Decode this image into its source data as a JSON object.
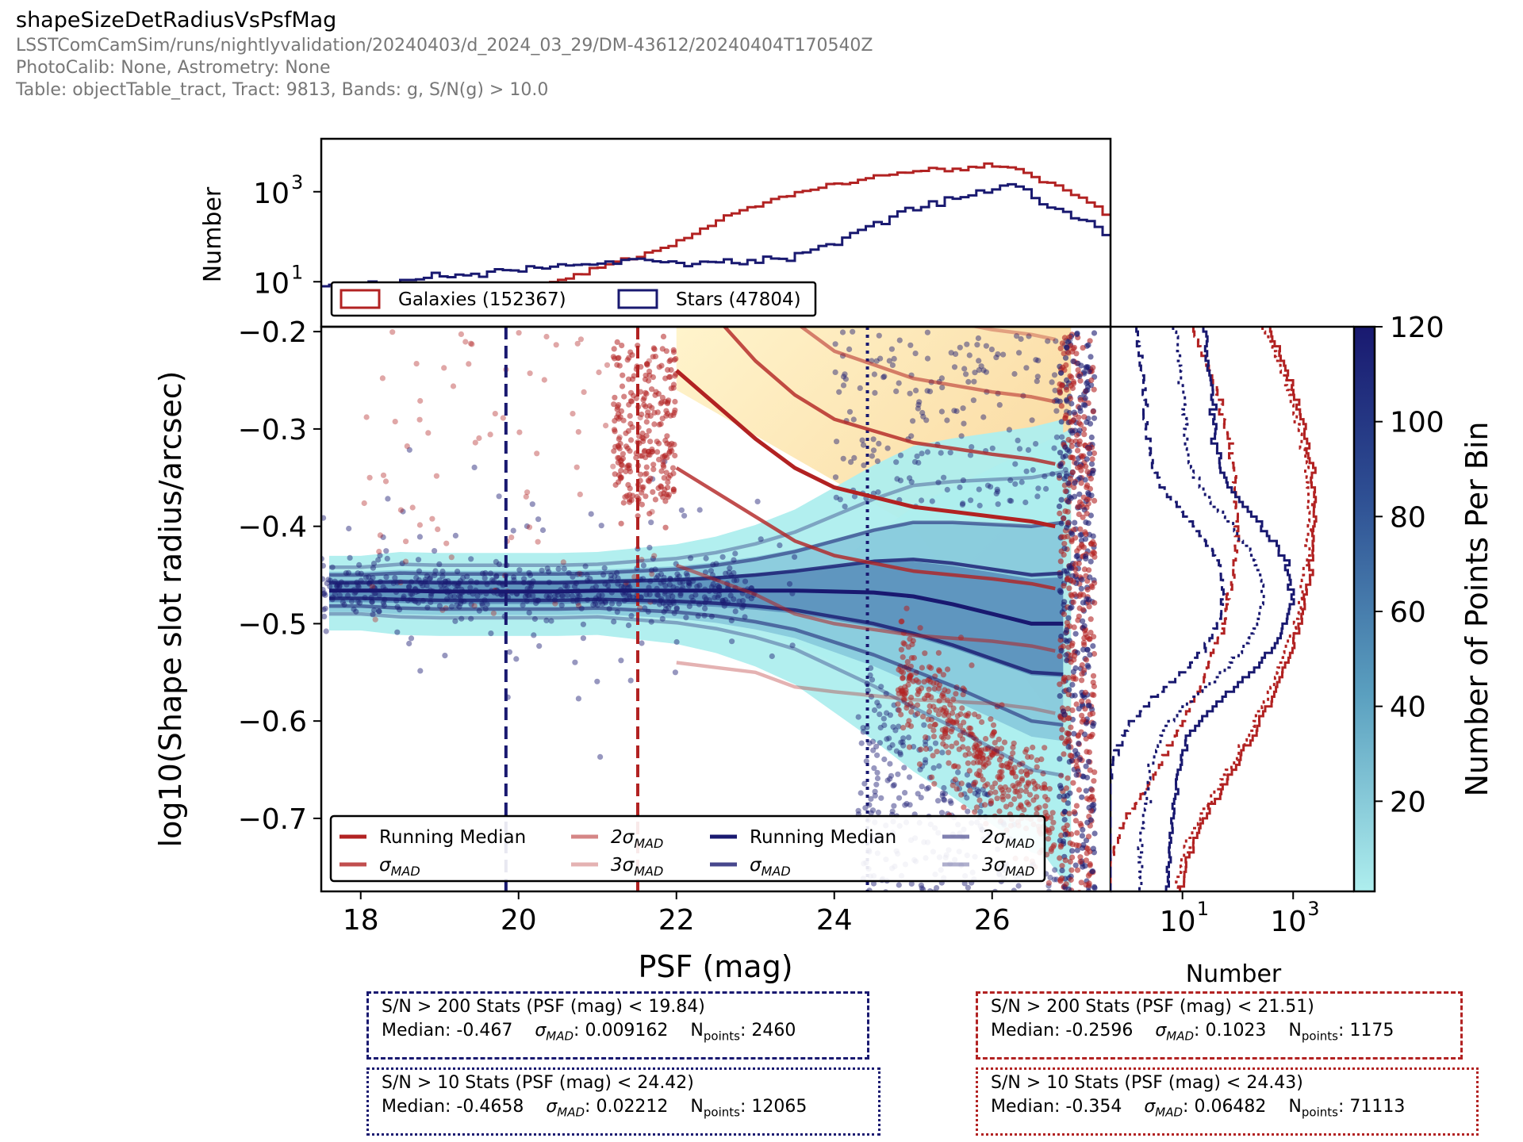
{
  "header": {
    "title": "shapeSizeDetRadiusVsPsfMag",
    "run": "LSSTComCamSim/runs/nightlyvalidation/20240403/d_2024_03_29/DM-43612/20240404T170540Z",
    "calib": "PhotoCalib: None, Astrometry: None",
    "table": "Table: objectTable_tract, Tract: 9813, Bands: g, S/N(g) > 10.0"
  },
  "colors": {
    "galaxies": "#b22222",
    "stars": "#191970",
    "hex_light": "#aeeeee",
    "galaxy_bg": "#fde7a6"
  },
  "chart_data": {
    "type": "scatter",
    "main": {
      "xlabel": "PSF (mag)",
      "ylabel": "log10(Shape slot radius/arcsec)",
      "xlim": [
        17.5,
        27.5
      ],
      "ylim": [
        -0.775,
        -0.195
      ],
      "xticks": [
        18,
        20,
        22,
        24,
        26
      ],
      "yticks": [
        -0.2,
        -0.3,
        -0.4,
        -0.5,
        -0.6,
        -0.7
      ],
      "vlines": [
        {
          "x": 19.84,
          "color": "#191970",
          "style": "dashed"
        },
        {
          "x": 21.51,
          "color": "#b22222",
          "style": "dashed"
        },
        {
          "x": 24.42,
          "color": "#191970",
          "style": "dotted"
        }
      ],
      "stars_median": {
        "x": [
          17.6,
          18.0,
          18.5,
          19.0,
          19.5,
          20.0,
          20.5,
          21.0,
          21.5,
          22.0,
          22.5,
          23.0,
          23.5,
          24.0,
          24.5,
          25.0,
          25.5,
          26.0,
          26.5,
          26.9
        ],
        "y": [
          -0.466,
          -0.466,
          -0.466,
          -0.467,
          -0.467,
          -0.467,
          -0.467,
          -0.466,
          -0.466,
          -0.466,
          -0.466,
          -0.466,
          -0.466,
          -0.467,
          -0.468,
          -0.472,
          -0.48,
          -0.49,
          -0.5,
          -0.5
        ],
        "sigma": [
          0.008,
          0.008,
          0.009,
          0.009,
          0.009,
          0.009,
          0.009,
          0.009,
          0.01,
          0.011,
          0.013,
          0.016,
          0.02,
          0.026,
          0.032,
          0.038,
          0.042,
          0.046,
          0.05,
          0.052
        ]
      },
      "galaxies_median": {
        "x": [
          22.0,
          22.5,
          23.0,
          23.5,
          24.0,
          24.5,
          25.0,
          25.5,
          26.0,
          26.5,
          26.8
        ],
        "y": [
          -0.24,
          -0.275,
          -0.31,
          -0.34,
          -0.36,
          -0.37,
          -0.38,
          -0.385,
          -0.39,
          -0.395,
          -0.4
        ],
        "sigma": [
          0.1,
          0.09,
          0.08,
          0.075,
          0.07,
          0.068,
          0.066,
          0.065,
          0.064,
          0.064,
          0.064
        ]
      },
      "legend": {
        "galaxies": {
          "median": "Running Median",
          "sig1": "σ",
          "sig2": "2σ",
          "sig3": "3σ",
          "sub": "MAD"
        },
        "stars": {
          "median": "Running Median",
          "sig1": "σ",
          "sig2": "2σ",
          "sig3": "3σ",
          "sub": "MAD"
        }
      }
    },
    "top_hist": {
      "ylabel": "Number",
      "yscale": "log",
      "yticks": [
        "10",
        "10"
      ],
      "ytick_exp": [
        "3",
        "1"
      ],
      "ytick_values": [
        1000,
        10
      ],
      "legend": [
        {
          "label": "Galaxies (152367)",
          "color": "#b22222"
        },
        {
          "label": "Stars (47804)",
          "color": "#191970"
        }
      ],
      "stars_x": [
        17.5,
        18.0,
        18.5,
        19.0,
        19.5,
        20.0,
        20.5,
        21.0,
        21.5,
        22.0,
        22.5,
        23.0,
        23.5,
        24.0,
        24.5,
        25.0,
        25.5,
        26.0,
        26.3,
        26.5,
        26.7,
        27.0,
        27.3,
        27.5
      ],
      "stars_y": [
        7,
        9,
        11,
        13,
        15,
        18,
        21,
        26,
        30,
        28,
        27,
        29,
        38,
        70,
        180,
        400,
        700,
        1100,
        1500,
        900,
        500,
        300,
        180,
        100
      ],
      "galaxies_x": [
        19.5,
        19.8,
        20.0,
        20.5,
        21.0,
        21.5,
        22.0,
        22.5,
        23.0,
        23.5,
        24.0,
        24.5,
        25.0,
        25.5,
        26.0,
        26.3,
        26.6,
        26.8,
        27.0,
        27.3,
        27.5
      ],
      "galaxies_y": [
        2,
        4,
        6,
        10,
        20,
        35,
        70,
        200,
        500,
        900,
        1400,
        2100,
        2800,
        3300,
        3600,
        3700,
        2200,
        1400,
        900,
        500,
        300
      ]
    },
    "side_hist": {
      "xlabel": "Number",
      "xscale": "log",
      "xticks": [
        "10",
        "10"
      ],
      "xtick_exp": [
        "1",
        "3"
      ],
      "xtick_values": [
        10,
        1000
      ]
    },
    "colorbar": {
      "label": "Number of Points Per Bin",
      "ticks": [
        20,
        40,
        60,
        80,
        100,
        120
      ],
      "range": [
        1,
        120
      ]
    }
  },
  "statboxes": {
    "stars_hi": {
      "line1": "S/N > 200 Stats (PSF (mag) < 19.84)",
      "median": "Median: -0.467",
      "sigma_label": "σ",
      "sigma_sub": "MAD",
      "sigma": ": 0.009162",
      "n_label": "N",
      "n_sub": "points",
      "n": ": 2460"
    },
    "stars_lo": {
      "line1": "S/N > 10 Stats (PSF (mag) < 24.42)",
      "median": "Median: -0.4658",
      "sigma_label": "σ",
      "sigma_sub": "MAD",
      "sigma": ": 0.02212",
      "n_label": "N",
      "n_sub": "points",
      "n": ": 12065"
    },
    "gal_hi": {
      "line1": "S/N > 200 Stats (PSF (mag) < 21.51)",
      "median": "Median: -0.2596",
      "sigma_label": "σ",
      "sigma_sub": "MAD",
      "sigma": ": 0.1023",
      "n_label": "N",
      "n_sub": "points",
      "n": ": 1175"
    },
    "gal_lo": {
      "line1": "S/N > 10 Stats (PSF (mag) < 24.43)",
      "median": "Median: -0.354",
      "sigma_label": "σ",
      "sigma_sub": "MAD",
      "sigma": ": 0.06482",
      "n_label": "N",
      "n_sub": "points",
      "n": ": 71113"
    }
  }
}
